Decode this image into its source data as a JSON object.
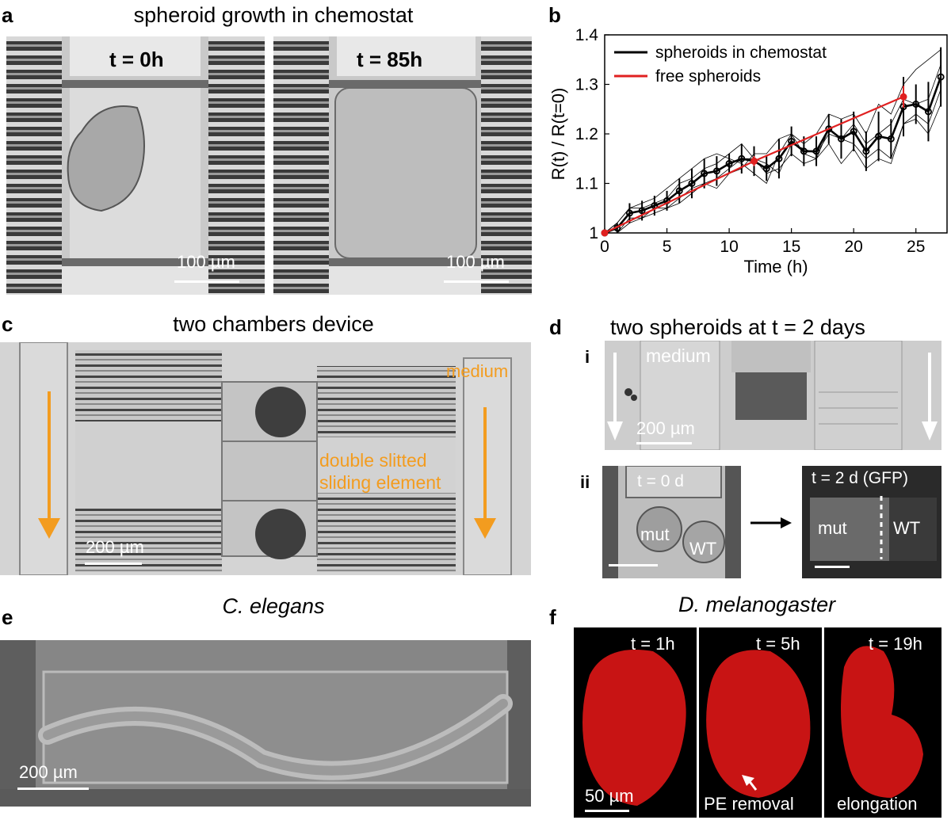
{
  "panels": {
    "a": {
      "label": "a",
      "title": "spheroid growth in chemostat",
      "left_time": "t = 0h",
      "right_time": "t = 85h",
      "scale": "100 µm"
    },
    "b": {
      "label": "b"
    },
    "c": {
      "label": "c",
      "title": "two chambers device",
      "medium": "medium",
      "element_line1": "double slitted",
      "element_line2": "sliding element",
      "scale": "200 µm"
    },
    "d": {
      "label": "d",
      "title": "two spheroids at t = 2 days",
      "sub_i": "i",
      "sub_ii": "ii",
      "medium": "medium",
      "scale": "200 µm",
      "t0": "t = 0 d",
      "t2": "t = 2 d (GFP)",
      "mut": "mut",
      "wt": "WT"
    },
    "e": {
      "label": "e",
      "title": "C. elegans",
      "scale": "200 µm"
    },
    "f": {
      "label": "f",
      "title": "D. melanogaster",
      "t1": "t = 1h",
      "t5": "t = 5h",
      "t19": "t = 19h",
      "scale": "50 µm",
      "pe": "PE removal",
      "elong": "elongation"
    }
  },
  "colors": {
    "orange": "#f39c1f",
    "red": "#e02020",
    "embryo": "#d81818"
  },
  "chart_data": {
    "type": "line",
    "xlabel": "Time (h)",
    "ylabel": "R(t) / R(t=0)",
    "xlim": [
      0,
      27.5
    ],
    "ylim": [
      1,
      1.4
    ],
    "xticks": [
      0,
      5,
      10,
      15,
      20,
      25
    ],
    "yticks": [
      1,
      1.1,
      1.2,
      1.3,
      1.4
    ],
    "legend": {
      "placement": "top-left",
      "entries": [
        "spheroids in chemostat",
        "free spheroids"
      ]
    },
    "series": [
      {
        "name": "spheroids in chemostat",
        "color": "#000000",
        "x": [
          0,
          1,
          2,
          3,
          4,
          5,
          6,
          7,
          8,
          9,
          10,
          11,
          12,
          13,
          14,
          15,
          16,
          17,
          18,
          19,
          20,
          21,
          22,
          23,
          24,
          25,
          26,
          27
        ],
        "y": [
          1.0,
          1.01,
          1.04,
          1.045,
          1.055,
          1.065,
          1.085,
          1.1,
          1.12,
          1.125,
          1.14,
          1.15,
          1.145,
          1.13,
          1.15,
          1.185,
          1.165,
          1.165,
          1.21,
          1.19,
          1.205,
          1.165,
          1.195,
          1.19,
          1.255,
          1.26,
          1.245,
          1.315
        ],
        "err": [
          0,
          0.01,
          0.02,
          0.02,
          0.02,
          0.02,
          0.025,
          0.03,
          0.03,
          0.03,
          0.02,
          0.03,
          0.03,
          0.025,
          0.04,
          0.03,
          0.03,
          0.03,
          0.03,
          0.04,
          0.04,
          0.04,
          0.05,
          0.04,
          0.06,
          0.04,
          0.06,
          0.06
        ]
      },
      {
        "name": "free spheroids",
        "color": "#e02020",
        "x": [
          0,
          12,
          24
        ],
        "y": [
          1.0,
          1.145,
          1.275
        ],
        "err": [
          0,
          0.01,
          0.022
        ]
      }
    ],
    "individual_traces": [
      [
        1.0,
        1.02,
        1.05,
        1.06,
        1.07,
        1.09,
        1.11,
        1.13,
        1.15,
        1.16,
        1.15,
        1.14,
        1.12,
        1.1,
        1.16,
        1.2,
        1.18,
        1.2,
        1.24,
        1.23,
        1.24,
        1.2,
        1.26,
        1.24,
        1.3,
        1.33,
        1.35,
        1.37
      ],
      [
        1.0,
        1.0,
        1.03,
        1.03,
        1.04,
        1.05,
        1.06,
        1.08,
        1.1,
        1.09,
        1.12,
        1.13,
        1.16,
        1.16,
        1.19,
        1.2,
        1.16,
        1.15,
        1.21,
        1.19,
        1.22,
        1.18,
        1.2,
        1.22,
        1.27,
        1.26,
        1.27,
        1.34
      ],
      [
        1.0,
        1.02,
        1.05,
        1.05,
        1.06,
        1.07,
        1.1,
        1.11,
        1.13,
        1.14,
        1.16,
        1.18,
        1.15,
        1.12,
        1.13,
        1.16,
        1.14,
        1.15,
        1.18,
        1.14,
        1.17,
        1.13,
        1.15,
        1.14,
        1.22,
        1.23,
        1.2,
        1.26
      ],
      [
        1.0,
        1.0,
        1.02,
        1.03,
        1.05,
        1.05,
        1.07,
        1.09,
        1.1,
        1.11,
        1.13,
        1.15,
        1.15,
        1.14,
        1.12,
        1.18,
        1.17,
        1.16,
        1.2,
        1.19,
        1.18,
        1.15,
        1.17,
        1.15,
        1.22,
        1.24,
        1.22,
        1.29
      ]
    ]
  }
}
